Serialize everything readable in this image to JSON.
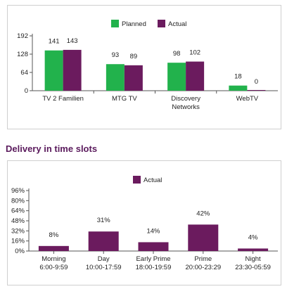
{
  "section_title": "Delivery in time slots",
  "colors": {
    "planned": "#22b24c",
    "actual": "#6b1b5e",
    "axis": "#555555"
  },
  "chart_data": [
    {
      "type": "bar",
      "title": "",
      "legend": [
        "Planned",
        "Actual"
      ],
      "legend_position": "top-center",
      "categories": [
        "TV 2 Familien",
        "MTG TV",
        "Discovery Networks",
        "WebTV"
      ],
      "series": [
        {
          "name": "Planned",
          "values": [
            141,
            93,
            98,
            18
          ]
        },
        {
          "name": "Actual",
          "values": [
            143,
            89,
            102,
            0
          ]
        }
      ],
      "data_labels": [
        [
          "141",
          "143"
        ],
        [
          "93",
          "89"
        ],
        [
          "98",
          "102"
        ],
        [
          "18",
          "0"
        ]
      ],
      "ylim": [
        0,
        192
      ],
      "yticks": [
        "0",
        "64",
        "128",
        "192"
      ],
      "grid": false
    },
    {
      "type": "bar",
      "title": "",
      "legend": [
        "Actual"
      ],
      "legend_position": "top-center",
      "categories": [
        "Morning",
        "Day",
        "Early Prime",
        "Prime",
        "Night"
      ],
      "category_sublabels": [
        "6:00-9:59",
        "10:00-17:59",
        "18:00-19:59",
        "20:00-23:29",
        "23:30-05:59"
      ],
      "series": [
        {
          "name": "Actual",
          "values": [
            8,
            31,
            14,
            42,
            4
          ]
        }
      ],
      "data_labels": [
        "8%",
        "31%",
        "14%",
        "42%",
        "4%"
      ],
      "ylim": [
        0,
        96
      ],
      "yticks": [
        "0%",
        "16%",
        "32%",
        "48%",
        "64%",
        "80%",
        "96%"
      ],
      "grid": false
    }
  ]
}
